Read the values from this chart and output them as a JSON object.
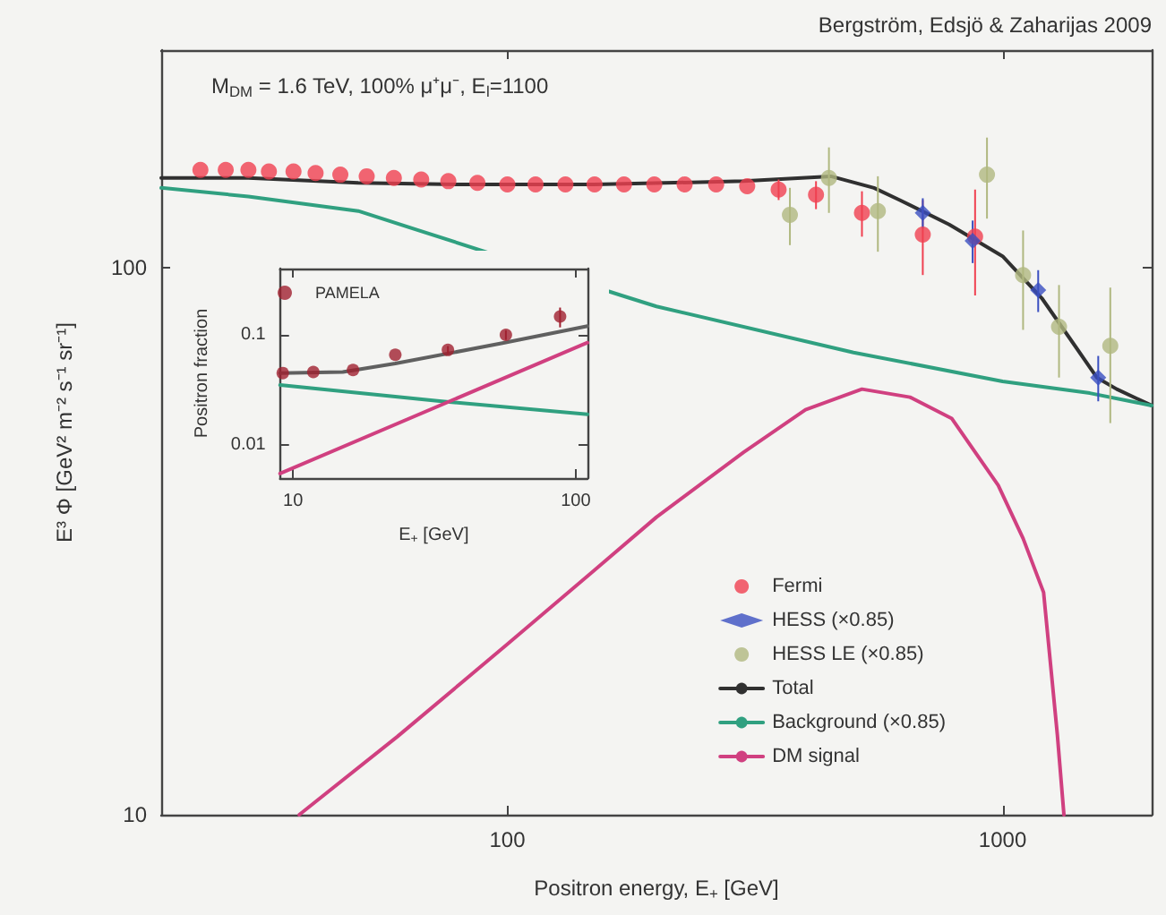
{
  "chart_data": [
    {
      "type": "line",
      "xlabel": "Positron energy, E$_{+}$ [GeV]",
      "ylabel": "E³ Φ [GeV² m⁻² s⁻¹ sr⁻¹]",
      "log": "xy",
      "xlim": [
        20,
        2000
      ],
      "ylim": [
        10,
        250
      ],
      "xticks": [
        100,
        1000
      ],
      "yticks": [
        10,
        100
      ],
      "legend": "bottom right",
      "annotations": [
        "Bergström, Edsjö & Zaharijas 2009",
        "M$_{DM}$ = 1.6 TeV, 100% μ⁺μ⁻, E$_{l}$=1100"
      ],
      "series": [
        {
          "name": "Fermi",
          "type": "scatter",
          "marker": "circle",
          "color": "#f04050",
          "x": [
            24,
            27,
            30,
            33,
            37,
            41,
            46,
            52,
            59,
            67,
            76,
            87,
            100,
            114,
            131,
            150,
            172,
            198,
            228,
            264,
            305,
            353,
            420,
            520,
            690,
            880
          ],
          "values": [
            151,
            151,
            151,
            150,
            150,
            149,
            148,
            147,
            146,
            145,
            144,
            143,
            142,
            142,
            142,
            142,
            142,
            142,
            142,
            142,
            141,
            139,
            136,
            126,
            115,
            114
          ],
          "errors": [
            null,
            null,
            null,
            null,
            null,
            null,
            null,
            null,
            null,
            null,
            null,
            null,
            null,
            null,
            null,
            null,
            null,
            null,
            null,
            null,
            null,
            6,
            8,
            12,
            18,
            25
          ]
        },
        {
          "name": "HESS (×0.85)",
          "type": "scatter",
          "marker": "diamond",
          "color": "#3a4fc0",
          "x": [
            690,
            870,
            1180,
            1560
          ],
          "values": [
            126,
            112,
            91,
            63
          ],
          "errors": [
            8,
            10,
            8,
            6
          ]
        },
        {
          "name": "HESS LE (×0.85)",
          "type": "scatter",
          "marker": "circle",
          "color": "#b0b880",
          "x": [
            372,
            446,
            560,
            930,
            1100,
            1300,
            1650
          ],
          "values": [
            125,
            146,
            127,
            148,
            97,
            78,
            72
          ],
          "errors": [
            15,
            20,
            20,
            25,
            20,
            15,
            20
          ]
        },
        {
          "name": "Total",
          "color": "#303030",
          "x": [
            20,
            30,
            50,
            80,
            150,
            300,
            450,
            550,
            620,
            780,
            1000,
            1200,
            1400,
            1550,
            1700,
            2000
          ],
          "values": [
            146,
            146,
            143,
            142,
            142,
            144,
            147,
            140,
            133,
            120,
            105,
            88,
            72,
            63,
            60,
            56
          ]
        },
        {
          "name": "Background (×0.85)",
          "color": "#30a080",
          "x": [
            20,
            30,
            50,
            170,
            200,
            500,
            1000,
            1500,
            2000
          ],
          "values": [
            140,
            135,
            127,
            89,
            85,
            70,
            62,
            59,
            56
          ]
        },
        {
          "name": "DM signal",
          "color": "#d04080",
          "x": [
            38,
            60,
            100,
            150,
            200,
            300,
            400,
            520,
            650,
            790,
            980,
            1100,
            1210,
            1290,
            1330
          ],
          "values": [
            10,
            13.9,
            20.5,
            28,
            35,
            46,
            55,
            60,
            58,
            53,
            40,
            32,
            25.5,
            14,
            10
          ]
        }
      ]
    },
    {
      "type": "line",
      "xlabel": "E$_{+}$ [GeV]",
      "ylabel": "Positron fraction",
      "log": "xy",
      "xlim": [
        9,
        110
      ],
      "ylim": [
        0.005,
        0.4
      ],
      "xticks": [
        10,
        100
      ],
      "yticks": [
        0.01,
        0.1
      ],
      "legend": "top left",
      "series": [
        {
          "name": "PAMELA",
          "type": "scatter",
          "marker": "circle",
          "color": "#a02030",
          "x": [
            9.2,
            11.8,
            16.3,
            23,
            35.3,
            56.6,
            88
          ],
          "values": [
            0.045,
            0.046,
            0.048,
            0.066,
            0.073,
            0.1,
            0.147
          ],
          "errors": [
            null,
            null,
            null,
            null,
            0.006,
            0.01,
            0.03
          ]
        },
        {
          "color": "#606060",
          "x": [
            9,
            15,
            23,
            55,
            110
          ],
          "values": [
            0.045,
            0.046,
            0.055,
            0.084,
            0.12
          ]
        },
        {
          "color": "#30a080",
          "x": [
            9,
            33,
            110
          ],
          "values": [
            0.035,
            0.025,
            0.019
          ]
        },
        {
          "color": "#d04080",
          "x": [
            9,
            110
          ],
          "values": [
            0.0055,
            0.085
          ]
        }
      ]
    }
  ]
}
